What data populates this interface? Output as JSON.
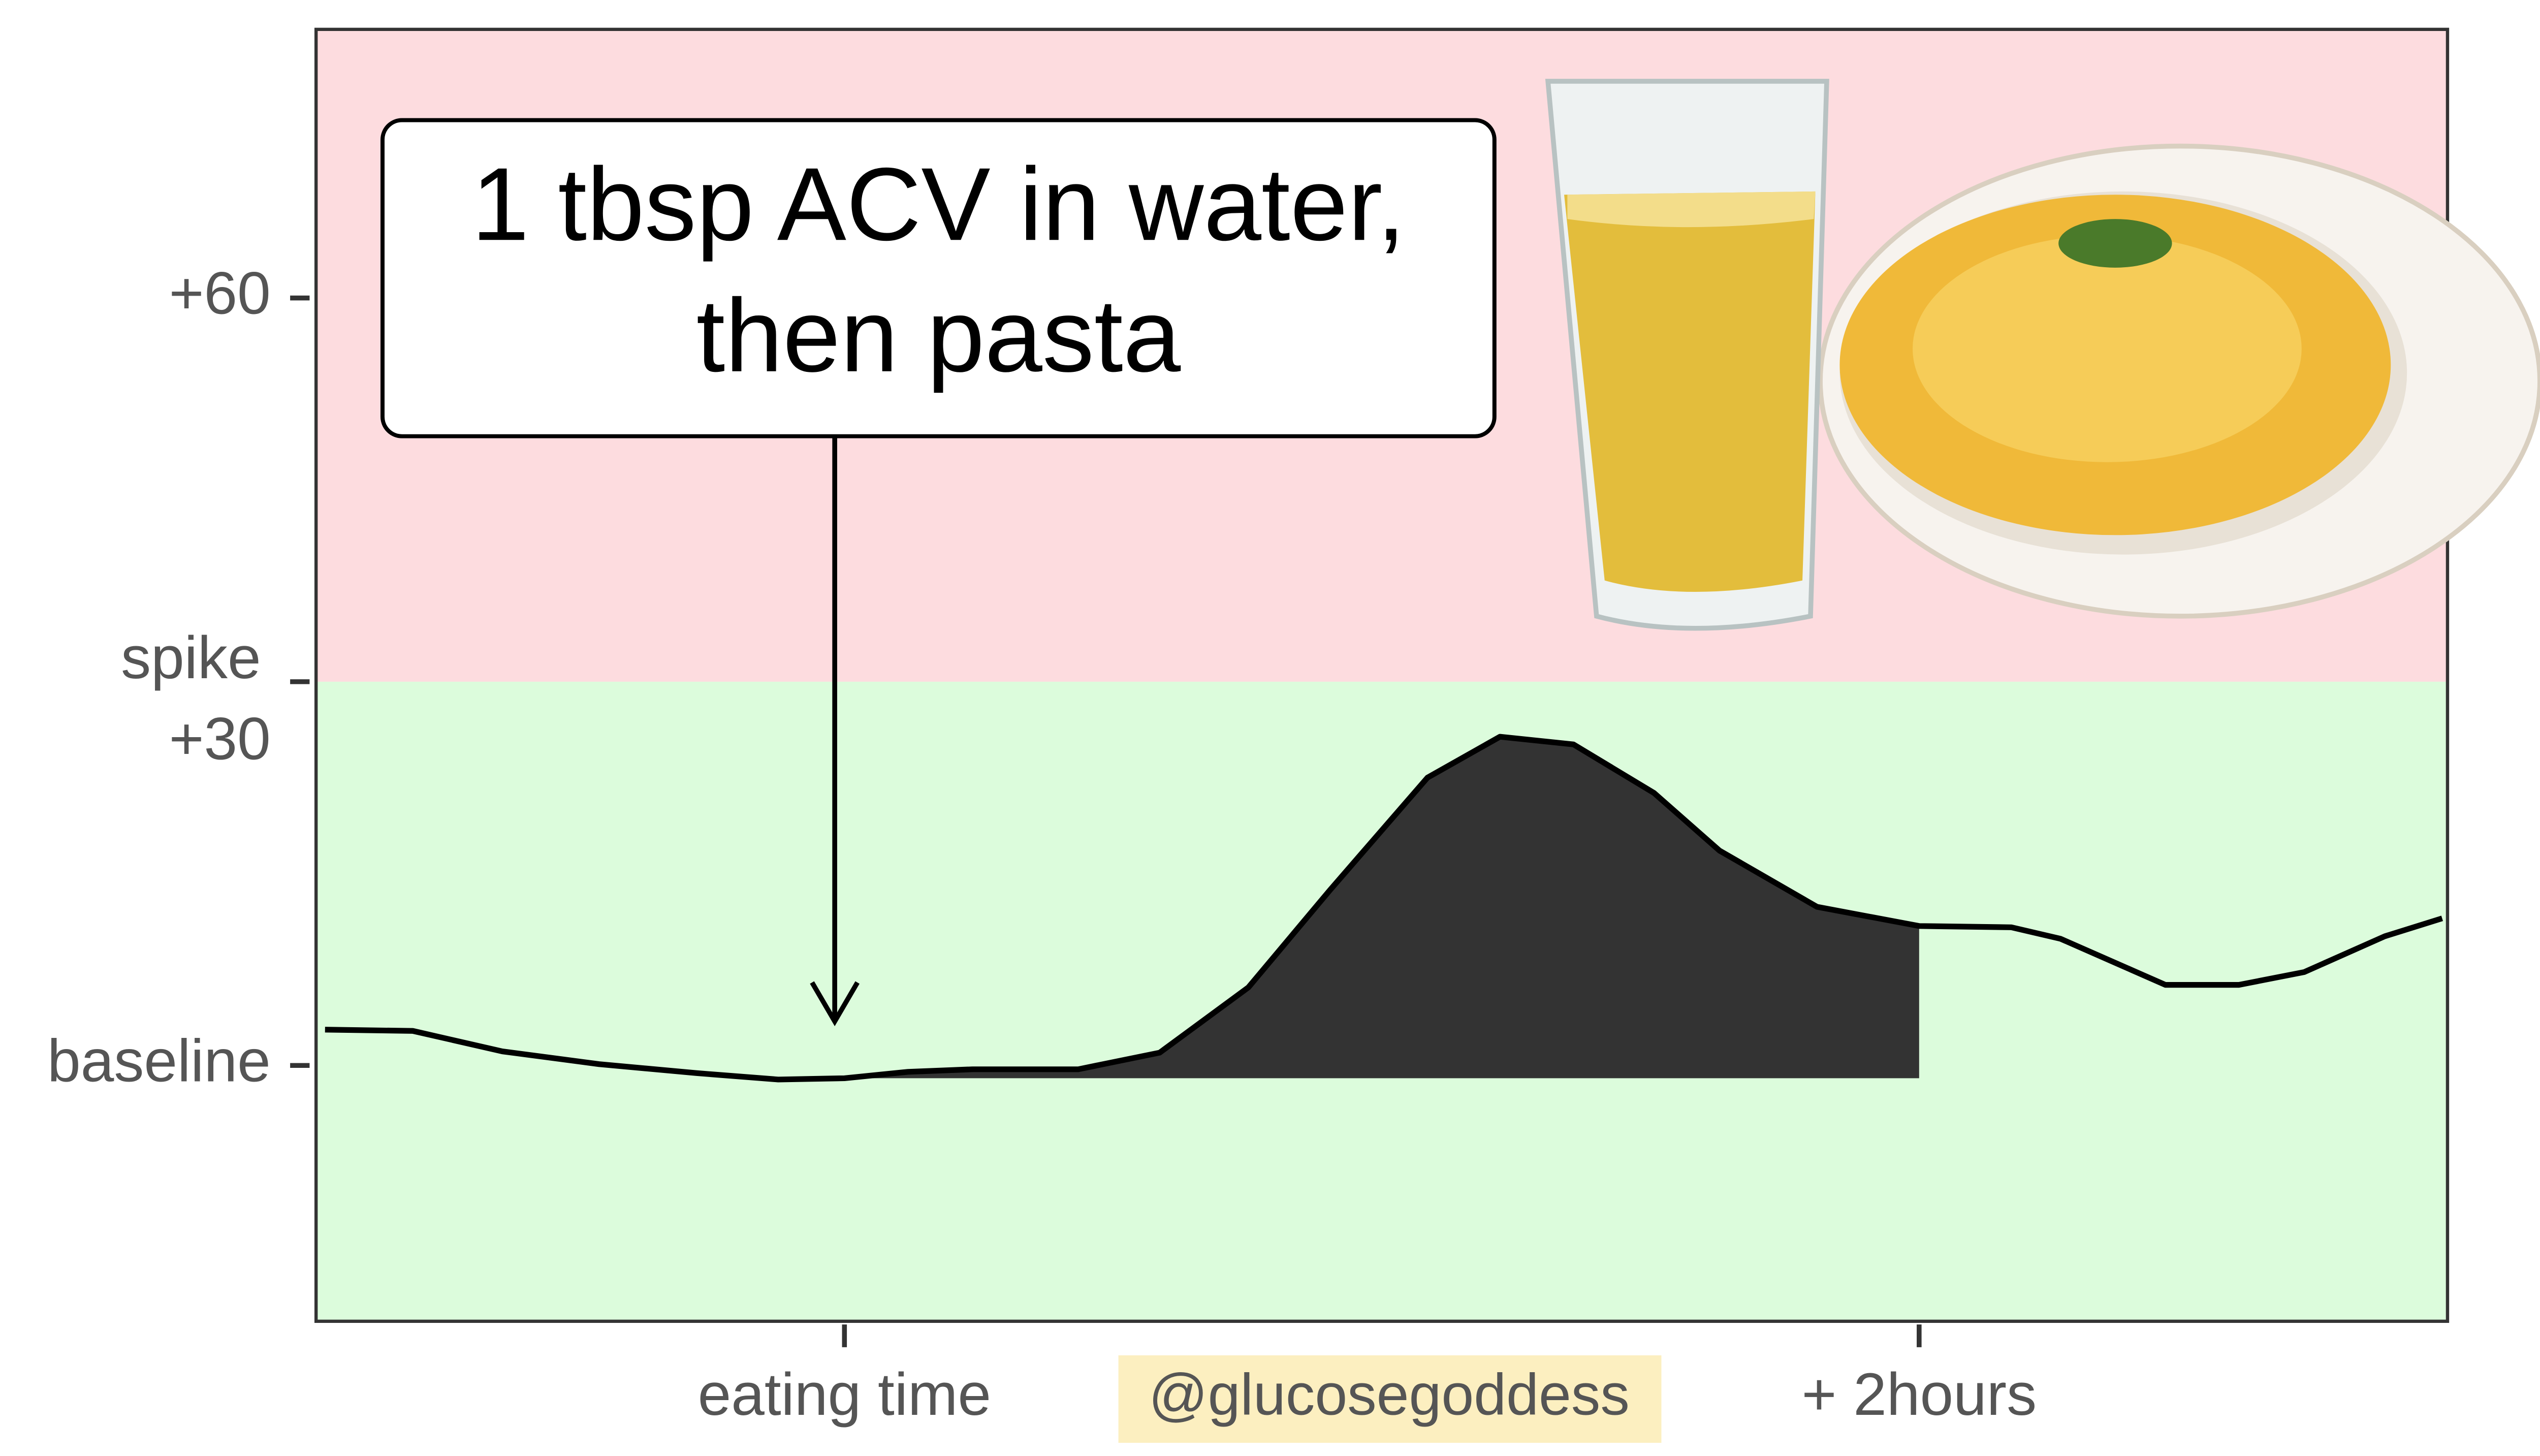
{
  "chart_data": {
    "type": "line",
    "x": [
      -58,
      -48.2,
      -38.2,
      -27.4,
      -16.5,
      -7.4,
      0,
      7.1,
      14.3,
      26.1,
      35.2,
      45.1,
      54.2,
      65.1,
      73.2,
      81.4,
      90.4,
      97.7,
      108.6,
      120,
      130.3,
      135.8,
      147.5,
      155.7,
      163,
      172,
      178.4
    ],
    "series": [
      {
        "color": "#000000",
        "values": [
          2.8,
          2.7,
          1.1,
          0.1,
          -0.6,
          -1.1,
          -1.0,
          -0.5,
          -0.3,
          -0.3,
          1.0,
          6.1,
          13.7,
          22.5,
          25.7,
          25.1,
          21.3,
          16.8,
          12.4,
          10.9,
          10.8,
          9.9,
          6.3,
          6.3,
          7.3,
          10.1,
          11.5
        ]
      }
    ],
    "area": {
      "x_range": [
        0,
        120
      ],
      "base": -1,
      "color": "#333333"
    },
    "xlim": [
      -59,
      179
    ],
    "ylim": [
      -20,
      81
    ],
    "xticks": [
      {
        "value": 0,
        "label": "eating time"
      },
      {
        "value": 120,
        "label": "+ 2hours"
      }
    ],
    "yticks": [
      {
        "value": 0,
        "label": "baseline"
      },
      {
        "value": 30,
        "label": "+30"
      },
      {
        "value": 60,
        "label": "+60"
      }
    ],
    "zones": [
      {
        "from": 30,
        "color": "#fddcdf"
      },
      {
        "to": 30,
        "color": "#dcfcdc"
      }
    ],
    "threshold_label": "spike",
    "annotation": {
      "lines": [
        "1 tbsp ACV in water,",
        "then pasta"
      ],
      "x": 0
    },
    "watermark": "@glucosegoddess"
  }
}
